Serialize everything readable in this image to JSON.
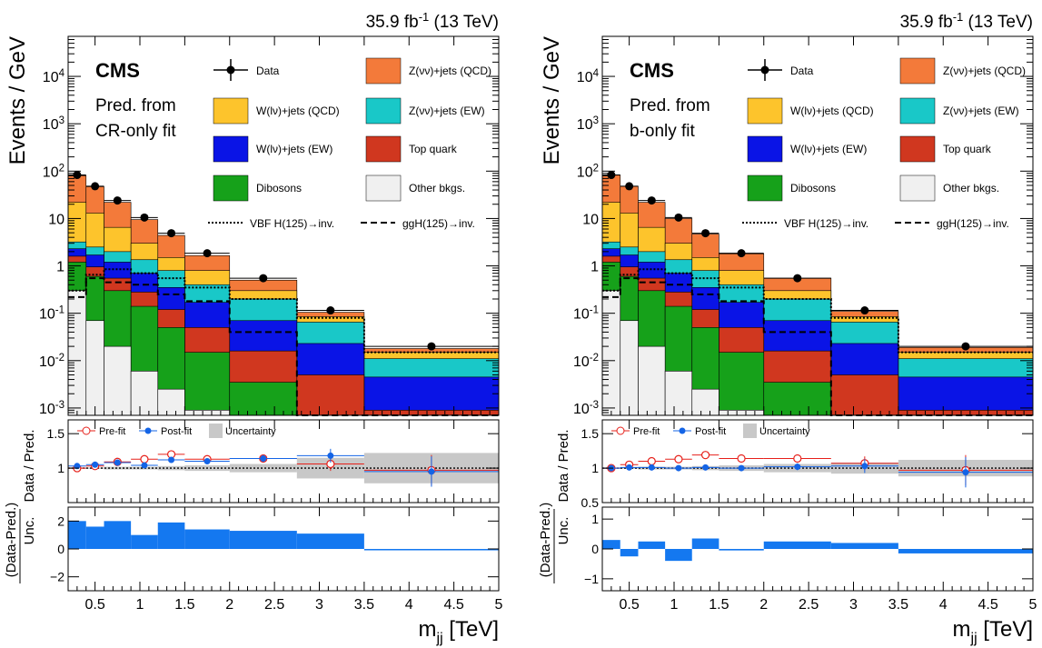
{
  "lumi_label": "35.9 fb",
  "lumi_superscript": "-1",
  "lumi_energy": "(13 TeV)",
  "cms_label": "CMS",
  "ylabel_main": "Events / GeV",
  "ylabel_ratio": "Data / Pred.",
  "ylabel_pull_num": "(Data-Pred.)",
  "ylabel_pull_den": "Unc.",
  "xlabel_main": "m",
  "xlabel_sub": "jj",
  "xlabel_unit": "[TeV]",
  "legend": {
    "data": "Data",
    "zvv_qcd": "Z(νν)+jets (QCD)",
    "wlv_qcd": "W(lν)+jets (QCD)",
    "zvv_ew": "Z(νν)+jets (EW)",
    "wlv_ew": "W(lν)+jets (EW)",
    "top": "Top quark",
    "dibosons": "Dibosons",
    "other": "Other bkgs.",
    "vbf": "VBF H(125)→inv.",
    "ggh": "ggH(125)→inv.",
    "prefit": "Pre-fit",
    "postfit": "Post-fit",
    "uncertainty": "Uncertainty"
  },
  "colors": {
    "zvv_qcd": "#f37a3a",
    "wlv_qcd": "#fdc42c",
    "zvv_ew": "#19c8c8",
    "wlv_ew": "#0a14e6",
    "top": "#d0371f",
    "dibosons": "#16a11a",
    "other": "#f0f0f0",
    "prefit": "#e6201a",
    "postfit": "#1464e6",
    "uncertainty": "#c8c8c8",
    "pull": "#1478f0"
  },
  "chart_data": [
    {
      "type": "bar",
      "panel": "CR-only fit",
      "text_lines": [
        "Pred. from",
        "CR-only fit"
      ],
      "x_bin_edges": [
        0.2,
        0.4,
        0.6,
        0.9,
        1.2,
        1.5,
        2.0,
        2.75,
        3.5,
        5.0
      ],
      "x_ticks": [
        0.5,
        1,
        1.5,
        2,
        2.5,
        3,
        3.5,
        4,
        4.5,
        5
      ],
      "x_tick_labels": [
        "0.5",
        "1",
        "1.5",
        "2",
        "2.5",
        "3",
        "3.5",
        "4",
        "4.5",
        "5"
      ],
      "xlim": [
        0.2,
        5.0
      ],
      "main": {
        "yscale": "log",
        "ylim": [
          0.0007,
          70000
        ],
        "y_tick_labels": [
          "10^-3",
          "10^-2",
          "10^-1",
          "1",
          "10",
          "10^2",
          "10^3",
          "10^4"
        ],
        "stack_cumulative": [
          {
            "key": "other",
            "values": [
              0.3,
              0.07,
              0.02,
              0.006,
              0.0025,
              0.0009,
              0.0004,
              0.0002,
              0.0001
            ]
          },
          {
            "key": "dibosons",
            "values": [
              1.2,
              0.6,
              0.3,
              0.14,
              0.05,
              0.015,
              0.0035,
              0.0007,
              0.0003
            ]
          },
          {
            "key": "top",
            "values": [
              1.6,
              0.95,
              0.55,
              0.28,
              0.12,
              0.05,
              0.016,
              0.005,
              0.0009
            ]
          },
          {
            "key": "wlv_ew",
            "values": [
              2.3,
              1.7,
              1.2,
              0.7,
              0.35,
              0.17,
              0.07,
              0.023,
              0.0045
            ]
          },
          {
            "key": "zvv_ew",
            "values": [
              3.2,
              2.5,
              2.0,
              1.35,
              0.8,
              0.4,
              0.2,
              0.065,
              0.011
            ]
          },
          {
            "key": "wlv_qcd",
            "values": [
              22,
              13,
              6.5,
              3.0,
              1.5,
              0.8,
              0.3,
              0.085,
              0.015
            ]
          },
          {
            "key": "zvv_qcd",
            "values": [
              80,
              47,
              22,
              9.5,
              4.4,
              1.65,
              0.5,
              0.105,
              0.018
            ]
          }
        ],
        "data": {
          "x": [
            0.3,
            0.5,
            0.75,
            1.05,
            1.35,
            1.75,
            2.375,
            3.125,
            4.25
          ],
          "y": [
            83,
            48,
            24,
            10.5,
            4.9,
            1.85,
            0.55,
            0.115,
            0.02
          ]
        },
        "vbf_signal": [
          0.3,
          0.65,
          0.85,
          0.7,
          0.55,
          0.35,
          0.2,
          0.08,
          0.015
        ],
        "ggh_signal": [
          0.22,
          0.55,
          0.45,
          0.4,
          0.25,
          0.18,
          0.04,
          0.0006,
          0.0006
        ]
      },
      "ratio": {
        "ylim": [
          0.5,
          1.7
        ],
        "y_ticks": [
          1,
          1.5
        ],
        "y_tick_labels": [
          "1",
          "1.5"
        ],
        "prefit": [
          1.0,
          1.03,
          1.09,
          1.13,
          1.2,
          1.13,
          1.14,
          1.06,
          0.97
        ],
        "postfit": [
          1.03,
          1.05,
          1.08,
          1.04,
          1.12,
          1.1,
          1.14,
          1.18,
          0.95
        ],
        "postfit_err": [
          0.02,
          0.02,
          0.03,
          0.03,
          0.04,
          0.04,
          0.05,
          0.1,
          0.22
        ],
        "unc_band": [
          0.01,
          0.01,
          0.02,
          0.02,
          0.03,
          0.04,
          0.06,
          0.15,
          0.22
        ]
      },
      "pull": {
        "ylim": [
          -3,
          3
        ],
        "y_ticks": [
          -2,
          0,
          2
        ],
        "y_tick_labels": [
          "−2",
          "0",
          "2"
        ],
        "values": [
          2.0,
          1.6,
          2.0,
          1.0,
          1.9,
          1.4,
          1.3,
          1.1,
          -0.1
        ]
      }
    },
    {
      "type": "bar",
      "panel": "b-only fit",
      "text_lines": [
        "Pred. from",
        "b-only fit"
      ],
      "x_bin_edges": [
        0.2,
        0.4,
        0.6,
        0.9,
        1.2,
        1.5,
        2.0,
        2.75,
        3.5,
        5.0
      ],
      "x_ticks": [
        0.5,
        1,
        1.5,
        2,
        2.5,
        3,
        3.5,
        4,
        4.5,
        5
      ],
      "x_tick_labels": [
        "0.5",
        "1",
        "1.5",
        "2",
        "2.5",
        "3",
        "3.5",
        "4",
        "4.5",
        "5"
      ],
      "xlim": [
        0.2,
        5.0
      ],
      "main": {
        "yscale": "log",
        "ylim": [
          0.0007,
          70000
        ],
        "y_tick_labels": [
          "10^-3",
          "10^-2",
          "10^-1",
          "1",
          "10",
          "10^2",
          "10^3",
          "10^4"
        ],
        "stack_cumulative": [
          {
            "key": "other",
            "values": [
              0.3,
              0.07,
              0.02,
              0.006,
              0.0025,
              0.0009,
              0.0004,
              0.0002,
              0.0001
            ]
          },
          {
            "key": "dibosons",
            "values": [
              1.2,
              0.6,
              0.3,
              0.14,
              0.05,
              0.015,
              0.0035,
              0.0007,
              0.0003
            ]
          },
          {
            "key": "top",
            "values": [
              1.6,
              0.95,
              0.55,
              0.28,
              0.12,
              0.05,
              0.016,
              0.005,
              0.0009
            ]
          },
          {
            "key": "wlv_ew",
            "values": [
              2.3,
              1.7,
              1.2,
              0.7,
              0.35,
              0.17,
              0.07,
              0.023,
              0.0045
            ]
          },
          {
            "key": "zvv_ew",
            "values": [
              3.2,
              2.5,
              2.0,
              1.35,
              0.8,
              0.4,
              0.2,
              0.065,
              0.011
            ]
          },
          {
            "key": "wlv_qcd",
            "values": [
              22,
              13,
              6.5,
              3.0,
              1.5,
              0.8,
              0.3,
              0.085,
              0.015
            ]
          },
          {
            "key": "zvv_qcd",
            "values": [
              82,
              48,
              22,
              10,
              4.7,
              1.8,
              0.55,
              0.11,
              0.019
            ]
          }
        ],
        "data": {
          "x": [
            0.3,
            0.5,
            0.75,
            1.05,
            1.35,
            1.75,
            2.375,
            3.125,
            4.25
          ],
          "y": [
            83,
            48,
            24,
            10.5,
            4.9,
            1.85,
            0.55,
            0.115,
            0.02
          ]
        },
        "vbf_signal": [
          0.3,
          0.65,
          0.85,
          0.7,
          0.55,
          0.35,
          0.2,
          0.08,
          0.015
        ],
        "ggh_signal": [
          0.22,
          0.55,
          0.45,
          0.4,
          0.25,
          0.18,
          0.04,
          0.0006,
          0.0006
        ]
      },
      "ratio": {
        "ylim": [
          0.5,
          1.7
        ],
        "y_ticks": [
          0.5,
          1,
          1.5
        ],
        "y_tick_labels": [
          "0.5",
          "1",
          "1.5"
        ],
        "prefit": [
          1.0,
          1.05,
          1.1,
          1.13,
          1.19,
          1.14,
          1.14,
          1.07,
          0.97
        ],
        "postfit": [
          1.0,
          1.01,
          1.01,
          1.0,
          1.01,
          1.0,
          1.02,
          1.03,
          0.94
        ],
        "postfit_err": [
          0.02,
          0.02,
          0.03,
          0.03,
          0.04,
          0.04,
          0.05,
          0.1,
          0.22
        ],
        "unc_band": [
          0.01,
          0.01,
          0.02,
          0.02,
          0.03,
          0.04,
          0.06,
          0.08,
          0.12
        ]
      },
      "pull": {
        "ylim": [
          -1.4,
          1.4
        ],
        "y_ticks": [
          -1,
          0,
          1
        ],
        "y_tick_labels": [
          "−1",
          "0",
          "1"
        ],
        "values": [
          0.3,
          -0.25,
          0.25,
          -0.4,
          0.35,
          -0.05,
          0.25,
          0.2,
          -0.15
        ]
      }
    }
  ]
}
